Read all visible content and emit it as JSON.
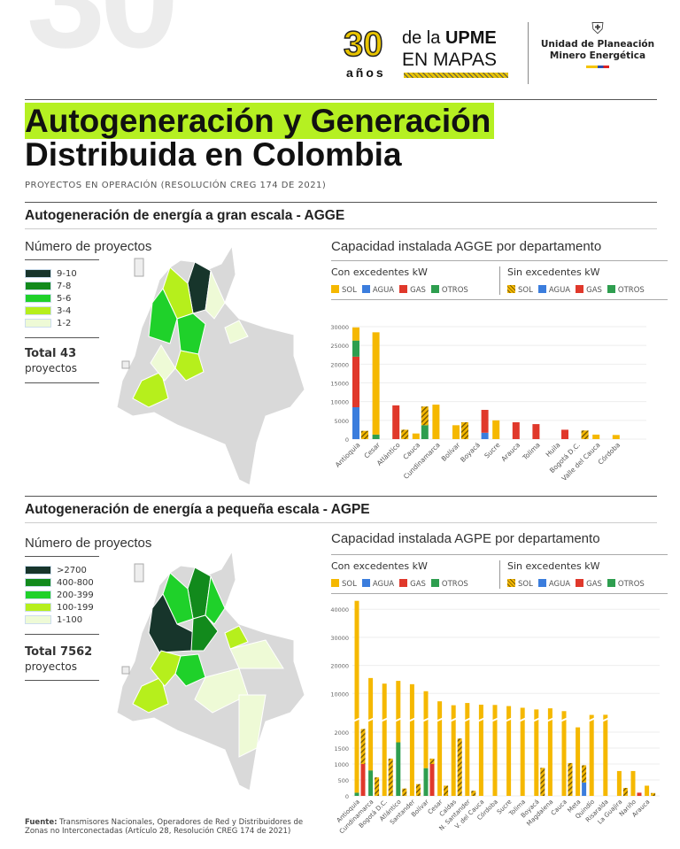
{
  "header": {
    "watermark": "30",
    "logo_number": "30",
    "logo_years": "años",
    "logo_line1_a": "de la ",
    "logo_line1_b": "UPME",
    "logo_line2": "EN MAPAS",
    "org_line1": "Unidad de Planeación",
    "org_line2": "Minero Energética"
  },
  "title": {
    "line1": "Autogeneración y Generación",
    "line2": "Distribuida en Colombia",
    "subtitle": "PROYECTOS EN OPERACIÓN (RESOLUCIÓN CREG 174 DE 2021)"
  },
  "colors": {
    "sol": "#f5b800",
    "agua": "#3b7ddd",
    "gas": "#e0382b",
    "otros": "#2e9e4f",
    "highlight": "#b5f022"
  },
  "agge": {
    "section_title": "Autogeneración de energía a gran escala - AGGE",
    "map_title": "Número de proyectos",
    "legend": [
      {
        "label": "9-10",
        "color": "#17352b"
      },
      {
        "label": "7-8",
        "color": "#128a1c"
      },
      {
        "label": "5-6",
        "color": "#1fd12a"
      },
      {
        "label": "3-4",
        "color": "#b6ef1c"
      },
      {
        "label": "1-2",
        "color": "#eefad6"
      }
    ],
    "total_label": "Total 43",
    "total_sub": "proyectos",
    "chart_title": "Capacidad instalada AGGE por departamento"
  },
  "agpe": {
    "section_title": "Autogeneración de energía a pequeña escala - AGPE",
    "map_title": "Número de proyectos",
    "legend": [
      {
        "label": ">2700",
        "color": "#17352b"
      },
      {
        "label": "400-800",
        "color": "#128a1c"
      },
      {
        "label": "200-399",
        "color": "#1fd12a"
      },
      {
        "label": "100-199",
        "color": "#b6ef1c"
      },
      {
        "label": "1-100",
        "color": "#eefad6"
      }
    ],
    "total_label": "Total 7562",
    "total_sub": "proyectos",
    "chart_title": "Capacidad instalada AGPE por departamento"
  },
  "chart_legend": {
    "con": "Con excedentes kW",
    "sin": "Sin excedentes kW",
    "items": [
      "SOL",
      "AGUA",
      "GAS",
      "OTROS"
    ]
  },
  "source": {
    "label": "Fuente:",
    "text": " Transmisores Nacionales, Operadores de Red y Distribuidores de Zonas no Interconectadas (Artículo 28, Resolución CREG 174 de 2021)"
  },
  "chart_data": [
    {
      "type": "bar",
      "title": "Capacidad instalada AGGE por departamento",
      "ylabel": "kW",
      "ylim": [
        0,
        30000
      ],
      "yticks": [
        0,
        5000,
        10000,
        15000,
        20000,
        25000,
        30000
      ],
      "categories": [
        "Antioquia",
        "Cesar",
        "Atlántico",
        "Cauca",
        "Cundinamarca",
        "Bolívar",
        "Boyacá",
        "Sucre",
        "Arauca",
        "Tolima",
        "Huila",
        "Bogotá D.C.",
        "Valle del Cauca",
        "Córdoba"
      ],
      "series": [
        {
          "name": "Con excedentes - AGUA",
          "values": [
            8500,
            0,
            0,
            0,
            0,
            0,
            0,
            0,
            0,
            0,
            0,
            0,
            0,
            0
          ]
        },
        {
          "name": "Con excedentes - GAS",
          "values": [
            13500,
            0,
            9000,
            0,
            0,
            0,
            0,
            0,
            4500,
            4000,
            0,
            0,
            0,
            0
          ]
        },
        {
          "name": "Con excedentes - OTROS",
          "values": [
            4300,
            1200,
            0,
            0,
            0,
            0,
            0,
            0,
            0,
            0,
            0,
            0,
            0,
            0
          ]
        },
        {
          "name": "Con excedentes - SOL",
          "values": [
            3500,
            27300,
            0,
            1500,
            9200,
            3700,
            0,
            5000,
            0,
            0,
            0,
            0,
            1200,
            1100
          ]
        },
        {
          "name": "Sin excedentes - AGUA",
          "values": [
            0,
            0,
            0,
            0,
            0,
            0,
            1700,
            0,
            0,
            0,
            0,
            0,
            0,
            0
          ]
        },
        {
          "name": "Sin excedentes - GAS",
          "values": [
            0,
            0,
            0,
            0,
            0,
            0,
            6100,
            0,
            0,
            0,
            2500,
            0,
            0,
            0
          ]
        },
        {
          "name": "Sin excedentes - OTROS",
          "values": [
            0,
            0,
            0,
            3700,
            0,
            0,
            0,
            0,
            0,
            0,
            0,
            0,
            0,
            0
          ]
        },
        {
          "name": "Sin excedentes - SOL",
          "values": [
            2200,
            0,
            2500,
            5000,
            0,
            4500,
            0,
            0,
            0,
            0,
            0,
            2300,
            0,
            0
          ]
        }
      ]
    },
    {
      "type": "bar",
      "title": "Capacidad instalada AGPE por departamento",
      "ylabel": "kW",
      "ylim": [
        0,
        44000
      ],
      "axis_break": [
        2200,
        10000
      ],
      "yticks_lower": [
        0,
        500,
        1000,
        1500,
        2000
      ],
      "yticks_upper": [
        10000,
        20000,
        30000,
        40000
      ],
      "categories": [
        "Antioquia",
        "Cundinamarca",
        "Bogotá D.C.",
        "Atlántico",
        "Santander",
        "Bolívar",
        "Cesar",
        "Caldas",
        "N. Santander",
        "V. del Cauca",
        "Córdoba",
        "Sucre",
        "Tolima",
        "Boyacá",
        "Magdalena",
        "Cauca",
        "Meta",
        "Quindío",
        "Risaralda",
        "La Guajira",
        "Nariño",
        "Arauca"
      ],
      "series": [
        {
          "name": "Con excedentes - AGUA",
          "values": [
            0,
            0,
            0,
            0,
            0,
            0,
            0,
            0,
            0,
            0,
            0,
            0,
            0,
            0,
            0,
            0,
            0,
            0,
            0,
            0,
            0,
            0
          ]
        },
        {
          "name": "Con excedentes - GAS",
          "values": [
            0,
            0,
            0,
            0,
            0,
            0,
            0,
            0,
            0,
            0,
            0,
            0,
            0,
            0,
            0,
            0,
            0,
            0,
            0,
            0,
            0,
            0
          ]
        },
        {
          "name": "Con excedentes - OTROS",
          "values": [
            100,
            800,
            0,
            1680,
            0,
            870,
            0,
            0,
            0,
            0,
            0,
            0,
            0,
            0,
            0,
            0,
            0,
            0,
            0,
            0,
            0,
            0
          ]
        },
        {
          "name": "Con excedentes - SOL",
          "values": [
            42900,
            14700,
            13500,
            12800,
            13300,
            9930,
            7200,
            5800,
            6600,
            6000,
            5900,
            5500,
            4900,
            4300,
            4700,
            3700,
            2150,
            2350,
            2400,
            780,
            780,
            320
          ]
        },
        {
          "name": "Sin excedentes - AGUA",
          "values": [
            0,
            0,
            0,
            0,
            0,
            0,
            0,
            0,
            0,
            0,
            0,
            0,
            0,
            0,
            0,
            0,
            420,
            0,
            0,
            0,
            0,
            0
          ]
        },
        {
          "name": "Sin excedentes - GAS",
          "values": [
            1000,
            0,
            0,
            0,
            0,
            1000,
            0,
            0,
            0,
            0,
            0,
            0,
            0,
            0,
            0,
            0,
            0,
            0,
            0,
            0,
            100,
            0
          ]
        },
        {
          "name": "Sin excedentes - OTROS",
          "values": [
            0,
            0,
            0,
            0,
            0,
            0,
            0,
            0,
            0,
            0,
            0,
            0,
            0,
            0,
            0,
            0,
            0,
            0,
            0,
            0,
            0,
            0
          ]
        },
        {
          "name": "Sin excedentes - SOL",
          "values": [
            1100,
            580,
            1170,
            230,
            370,
            170,
            320,
            1800,
            160,
            0,
            0,
            0,
            0,
            880,
            0,
            1030,
            540,
            0,
            0,
            250,
            0,
            90
          ]
        }
      ]
    }
  ]
}
